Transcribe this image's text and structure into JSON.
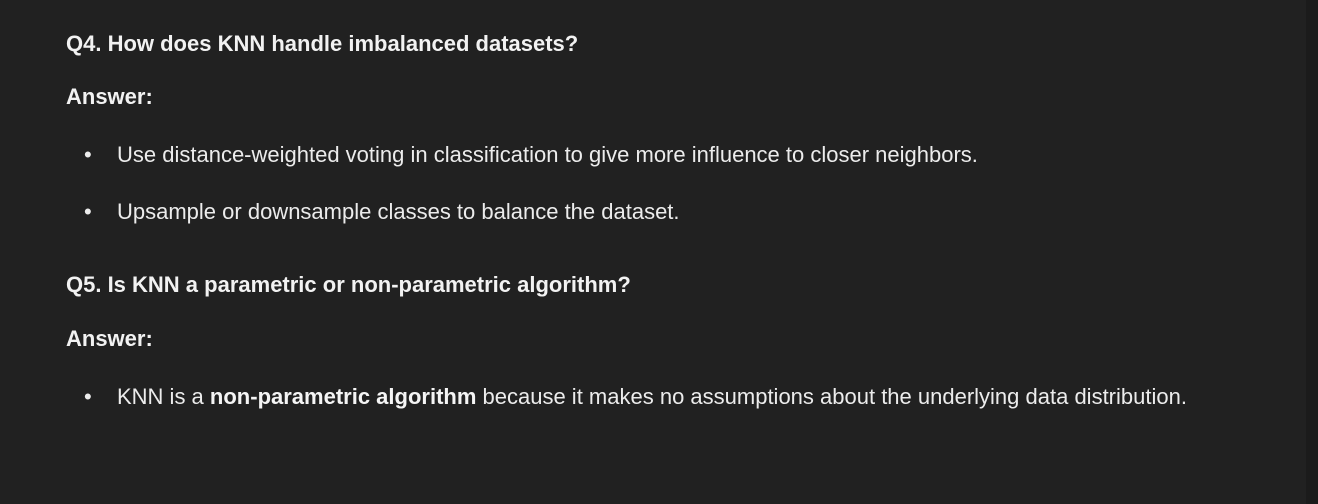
{
  "sections": [
    {
      "question": "Q4. How does KNN handle imbalanced datasets?",
      "answer_label": "Answer:",
      "bullets": [
        "Use distance-weighted voting in classification to give more influence to closer neighbors.",
        "Upsample or downsample classes to balance the dataset."
      ]
    },
    {
      "question": "Q5. Is KNN a parametric or non-parametric algorithm?",
      "answer_label": "Answer:",
      "bullets": [
        {
          "before": "KNN is a ",
          "bold": "non-parametric algorithm",
          "after": " because it makes no assumptions about the underlying data distribution."
        }
      ]
    }
  ],
  "bullet_glyph": "•"
}
